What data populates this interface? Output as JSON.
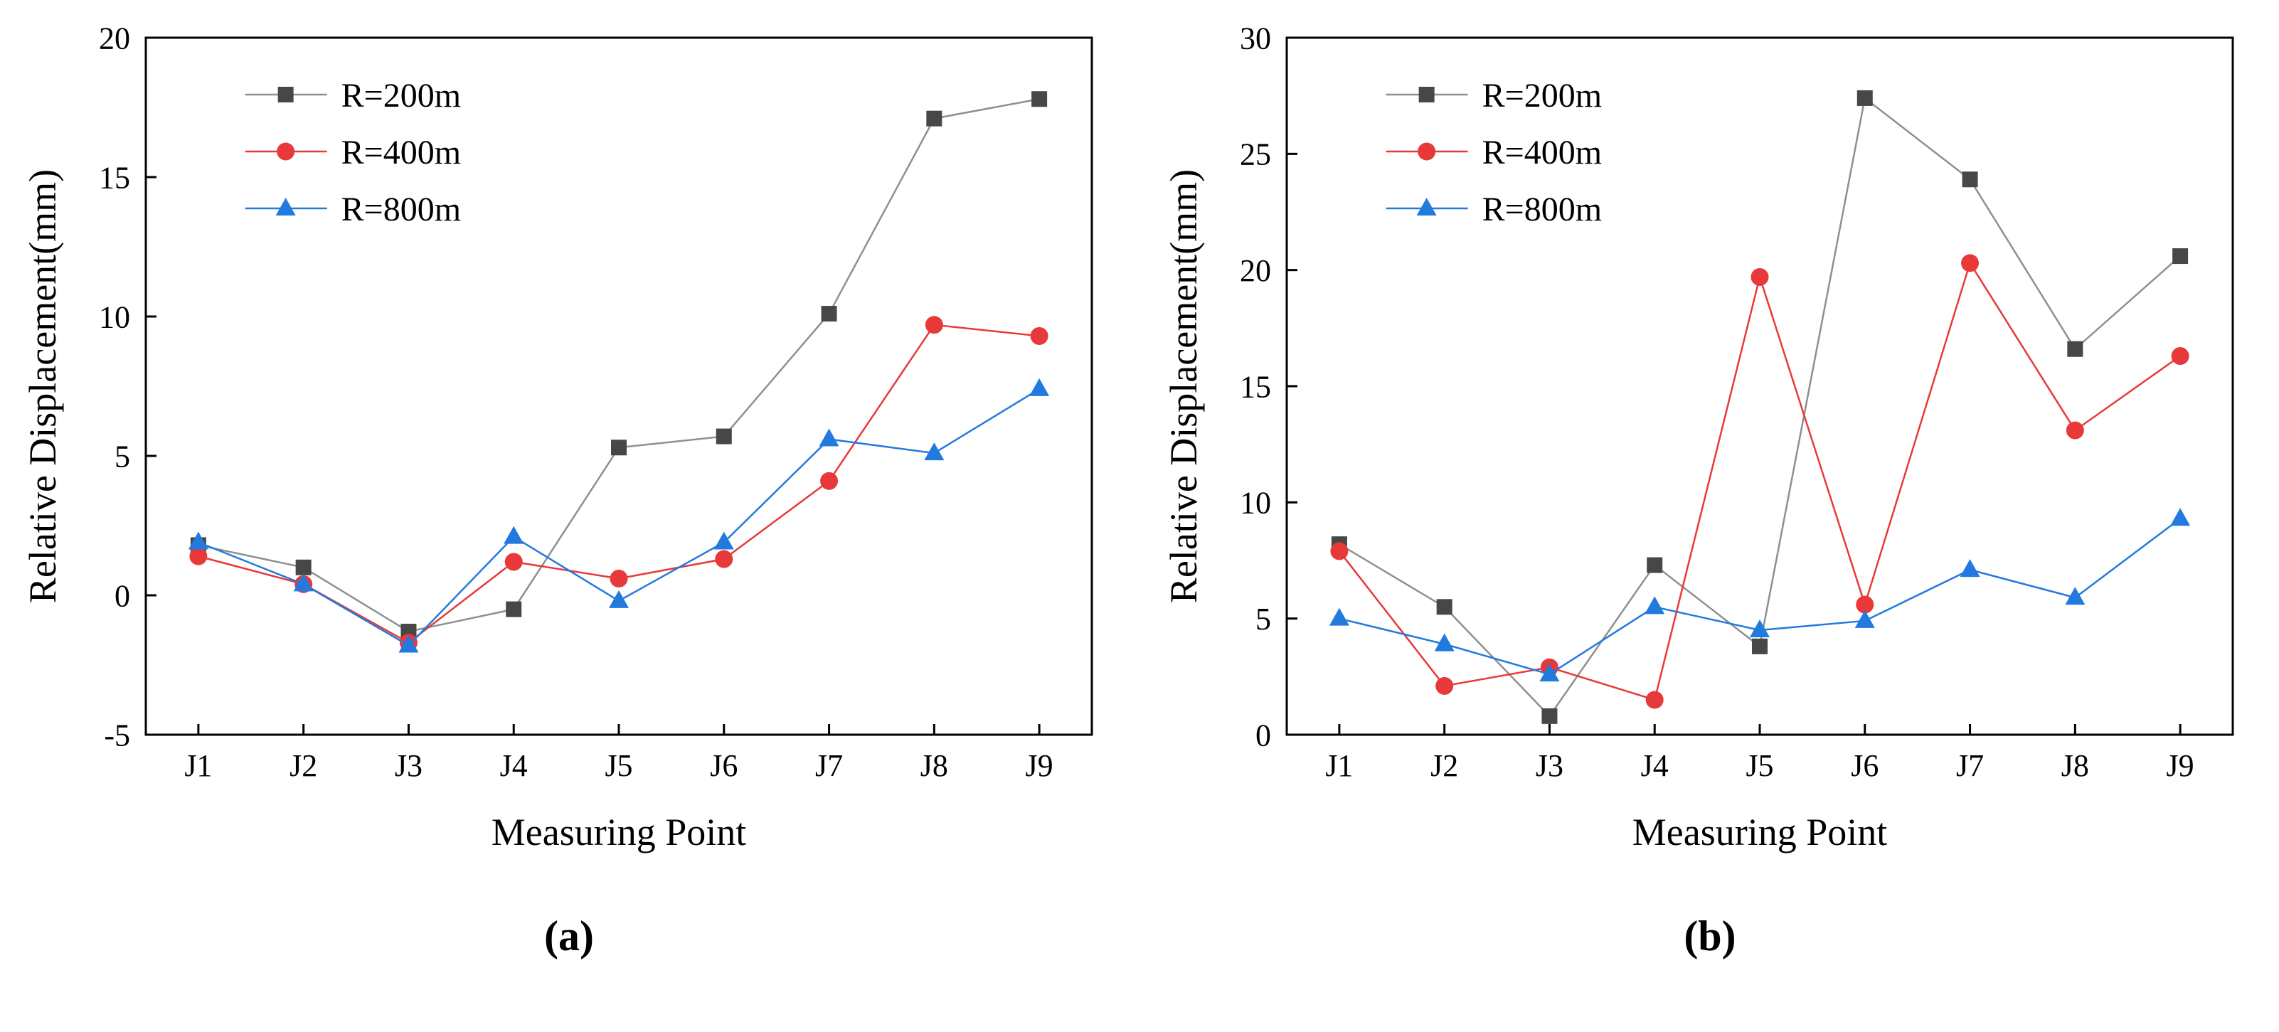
{
  "chart_data": [
    {
      "type": "line",
      "panel_label": "(a)",
      "title": "",
      "xlabel": "Measuring Point",
      "ylabel": "Relative Displacement(mm)",
      "categories": [
        "J1",
        "J2",
        "J3",
        "J4",
        "J5",
        "J6",
        "J7",
        "J8",
        "J9"
      ],
      "ylim": [
        -5,
        20
      ],
      "ytick_step": 5,
      "grid": false,
      "legend_position": "top-left",
      "series": [
        {
          "name": "R=200m",
          "marker": "square",
          "color": "#474747",
          "line_color": "#8f8f8f",
          "values": [
            1.8,
            1.0,
            -1.3,
            -0.5,
            5.3,
            5.7,
            10.1,
            17.1,
            17.8
          ]
        },
        {
          "name": "R=400m",
          "marker": "circle",
          "color": "#e8393a",
          "line_color": "#e8393a",
          "values": [
            1.4,
            0.4,
            -1.7,
            1.2,
            0.6,
            1.3,
            4.1,
            9.7,
            9.3
          ]
        },
        {
          "name": "R=800m",
          "marker": "triangle",
          "color": "#2279de",
          "line_color": "#2279de",
          "values": [
            1.9,
            0.4,
            -1.8,
            2.1,
            -0.2,
            1.9,
            5.6,
            5.1,
            7.4
          ]
        }
      ]
    },
    {
      "type": "line",
      "panel_label": "(b)",
      "title": "",
      "xlabel": "Measuring Point",
      "ylabel": "Relative Displacement(mm)",
      "categories": [
        "J1",
        "J2",
        "J3",
        "J4",
        "J5",
        "J6",
        "J7",
        "J8",
        "J9"
      ],
      "ylim": [
        0,
        30
      ],
      "ytick_step": 5,
      "grid": false,
      "legend_position": "top-left",
      "series": [
        {
          "name": "R=200m",
          "marker": "square",
          "color": "#474747",
          "line_color": "#8f8f8f",
          "values": [
            8.2,
            5.5,
            0.8,
            7.3,
            3.8,
            27.4,
            23.9,
            16.6,
            20.6
          ]
        },
        {
          "name": "R=400m",
          "marker": "circle",
          "color": "#e8393a",
          "line_color": "#e8393a",
          "values": [
            7.9,
            2.1,
            2.9,
            1.5,
            19.7,
            5.6,
            20.3,
            13.1,
            16.3
          ]
        },
        {
          "name": "R=800m",
          "marker": "triangle",
          "color": "#2279de",
          "line_color": "#2279de",
          "values": [
            5.0,
            3.9,
            2.6,
            5.5,
            4.5,
            4.9,
            7.1,
            5.9,
            9.3
          ]
        }
      ]
    }
  ]
}
